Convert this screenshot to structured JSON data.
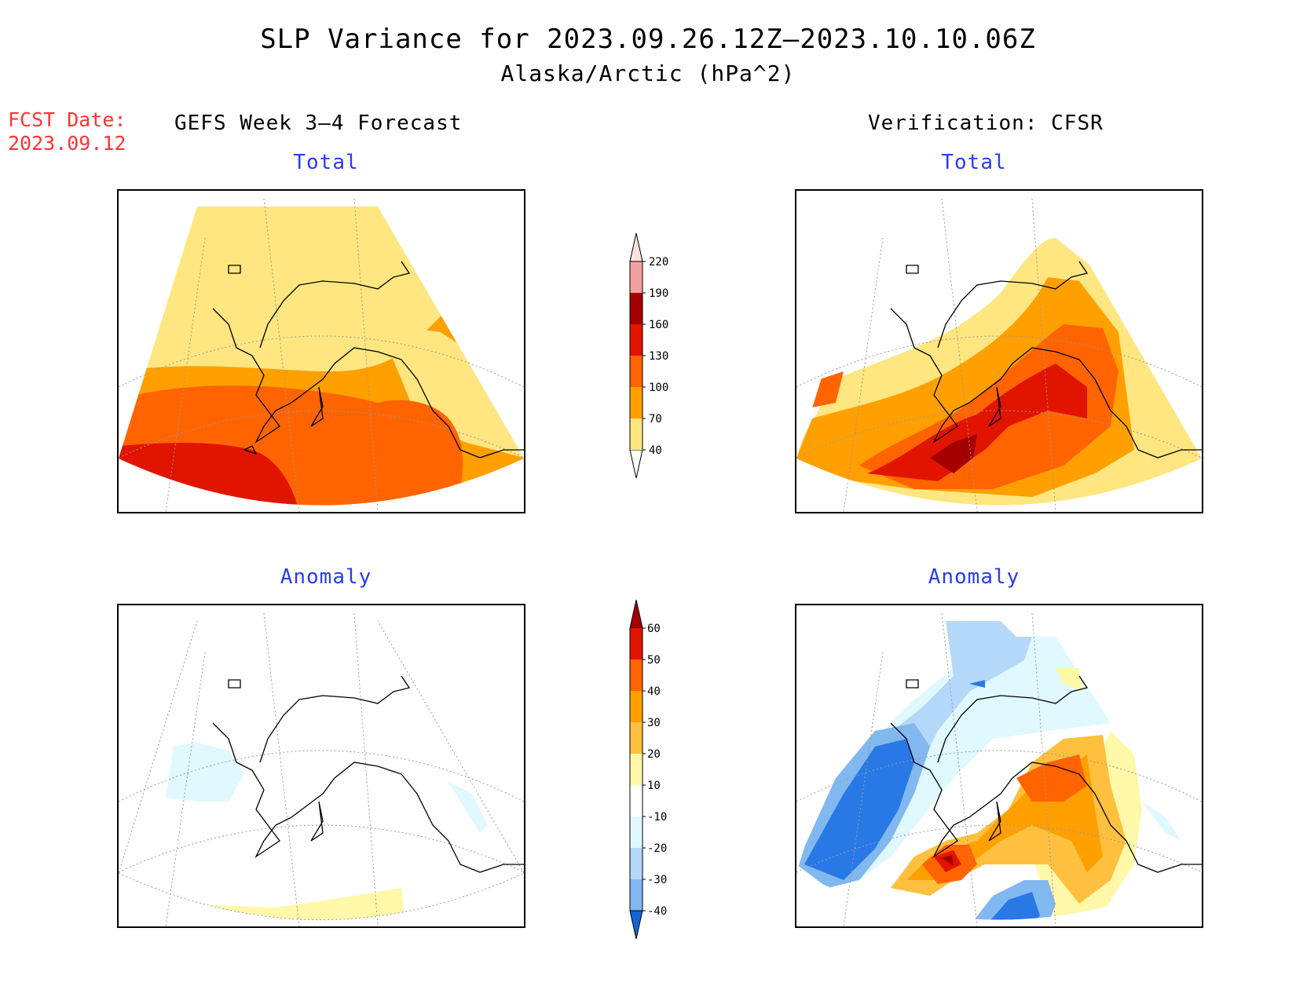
{
  "title": {
    "line1": "SLP Variance for 2023.09.26.12Z–2023.10.10.06Z",
    "line2": "Alaska/Arctic (hPa^2)"
  },
  "forecast_date": {
    "label": "FCST Date:",
    "value": "2023.09.12"
  },
  "columns": {
    "left": "GEFS Week 3–4 Forecast",
    "right": "Verification: CFSR"
  },
  "panels": {
    "forecast_total": "Total",
    "verification_total": "Total",
    "forecast_anomaly": "Anomaly",
    "verification_anomaly": "Anomaly"
  },
  "total_colorbar": {
    "levels": [
      "40",
      "70",
      "100",
      "130",
      "160",
      "190",
      "220"
    ],
    "colors": [
      "#ffe680",
      "#ffa000",
      "#ff6400",
      "#e11400",
      "#a50000",
      "#f4a0a0",
      "#fde2e0"
    ]
  },
  "anomaly_colorbar": {
    "levels": [
      "60",
      "50",
      "40",
      "30",
      "20",
      "10",
      "-10",
      "-20",
      "-30",
      "-40"
    ],
    "colors_top_to_bottom": [
      "#a50000",
      "#e11400",
      "#ff6400",
      "#ffa000",
      "#ffc040",
      "#fff8a8",
      "#ffffff",
      "#e0f8ff",
      "#b4d8f8",
      "#82b8f0",
      "#2878e6",
      "#1464d2"
    ]
  },
  "palette": {
    "water_line": "#000000",
    "grid": "#999999",
    "blue_text": "#2b3cf0",
    "red_text": "#ff3333"
  }
}
